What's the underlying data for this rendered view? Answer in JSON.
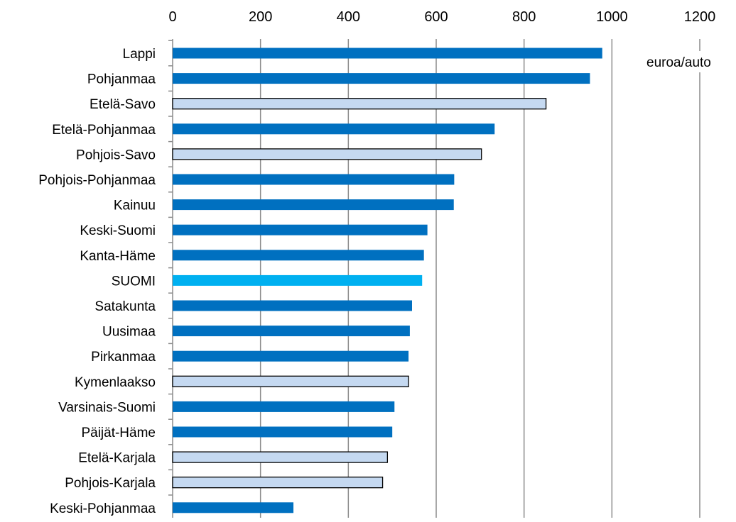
{
  "chart_data": {
    "type": "bar",
    "orientation": "horizontal",
    "title": "",
    "xlabel": "",
    "ylabel": "",
    "unit_label": "euroa/auto",
    "xlim": [
      0,
      1200
    ],
    "x_ticks": [
      "0",
      "200",
      "400",
      "600",
      "800",
      "1000",
      "1200"
    ],
    "grid": true,
    "legend": "none",
    "categories": [
      "Lappi",
      "Pohjanmaa",
      "Etelä-Savo",
      "Etelä-Pohjanmaa",
      "Pohjois-Savo",
      "Pohjois-Pohjanmaa",
      "Kainuu",
      "Keski-Suomi",
      "Kanta-Häme",
      "SUOMI",
      "Satakunta",
      "Uusimaa",
      "Pirkanmaa",
      "Kymenlaakso",
      "Varsinais-Suomi",
      "Päijät-Häme",
      "Etelä-Karjala",
      "Pohjois-Karjala",
      "Keski-Pohjanmaa"
    ],
    "values": [
      978,
      950,
      850,
      733,
      703,
      641,
      640,
      580,
      572,
      568,
      545,
      540,
      537,
      537,
      505,
      500,
      489,
      478,
      275
    ],
    "bar_styles": [
      "dark",
      "dark",
      "light",
      "dark",
      "light",
      "dark",
      "dark",
      "dark",
      "dark",
      "highlight",
      "dark",
      "dark",
      "dark",
      "light",
      "dark",
      "dark",
      "light",
      "light",
      "dark"
    ],
    "colors": {
      "dark": "#0070C0",
      "light": "#C5D9F1",
      "highlight": "#00B0F0",
      "grid": "#8C8C8C",
      "outline": "#000000"
    }
  }
}
